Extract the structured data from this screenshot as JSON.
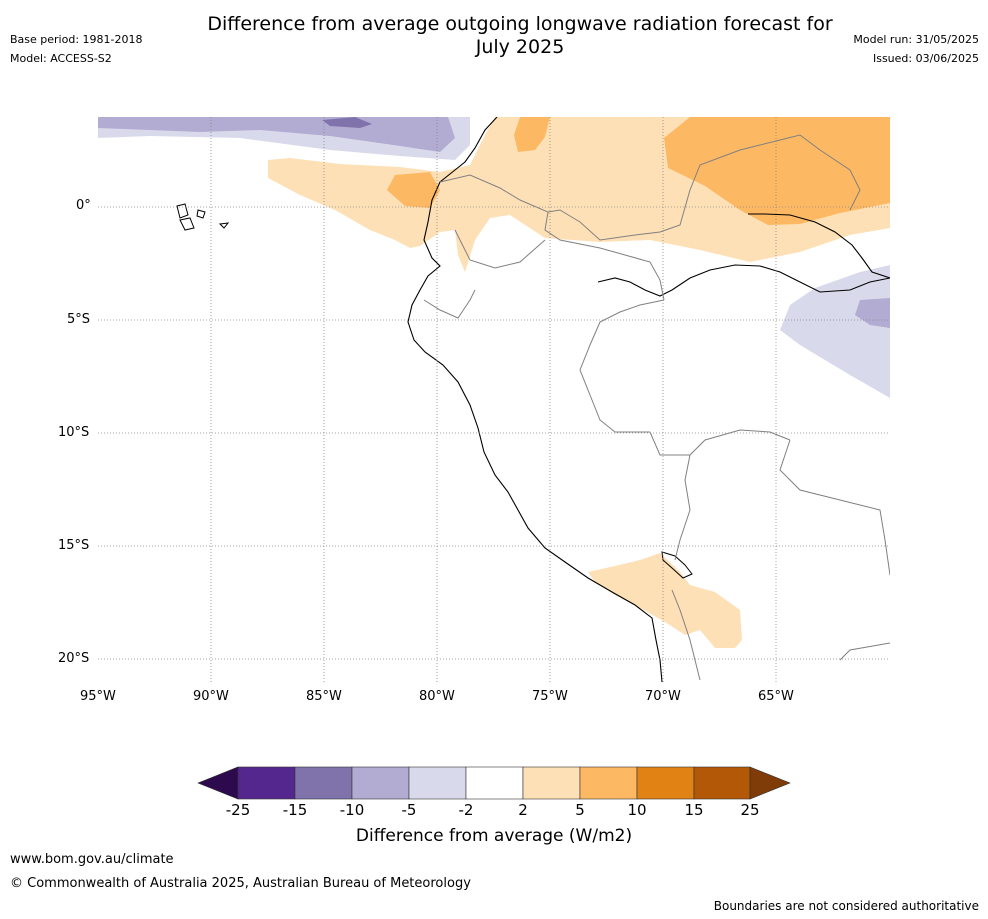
{
  "header": {
    "title_line1": "Difference from average outgoing longwave radiation forecast for",
    "title_line2": "July 2025",
    "base_period": "Base period: 1981-2018",
    "model": "Model: ACCESS-S2",
    "model_run": "Model run: 31/05/2025",
    "issued": "Issued: 03/06/2025"
  },
  "map": {
    "lat_labels": [
      "0°",
      "5°S",
      "10°S",
      "15°S",
      "20°S"
    ],
    "lon_labels": [
      "95°W",
      "90°W",
      "85°W",
      "80°W",
      "75°W",
      "70°W",
      "65°W"
    ],
    "lon_range": [
      -95,
      -60
    ],
    "lat_range": [
      -21,
      4
    ]
  },
  "colorbar": {
    "title": "Difference from average (W/m2)",
    "ticks": [
      "-25",
      "-15",
      "-10",
      "-5",
      "-2",
      "2",
      "5",
      "10",
      "15",
      "25"
    ],
    "colors": {
      "below_min": "#2d0a4e",
      "-25_-15": "#54278f",
      "-15_-10": "#8073ac",
      "-10_-5": "#b2abd2",
      "-5_-2": "#d8daeb",
      "-2_2": "#ffffff",
      "2_5": "#fee0b6",
      "5_10": "#fdb863",
      "10_15": "#e08214",
      "15_25": "#b35806",
      "above_max": "#7f3b08"
    }
  },
  "footer": {
    "url": "www.bom.gov.au/climate",
    "copyright": "© Commonwealth of Australia 2025, Australian Bureau of Meteorology",
    "disclaimer": "Boundaries are not considered authoritative"
  }
}
